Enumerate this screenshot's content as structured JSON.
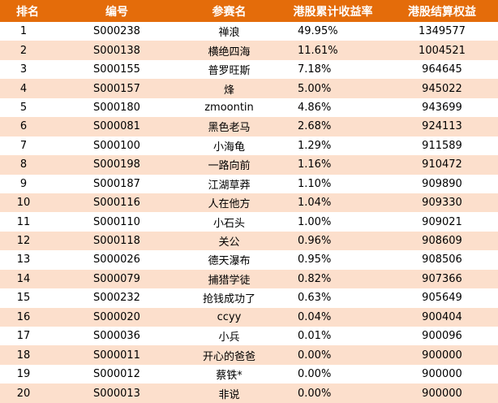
{
  "columns": {
    "rank": "排名",
    "id": "编号",
    "name": "参赛名",
    "return": "港股累计收益率",
    "equity": "港股结算权益"
  },
  "rows": [
    {
      "rank": "1",
      "id": "S000238",
      "name": "禅浪",
      "return": "49.95%",
      "equity": "1349577"
    },
    {
      "rank": "2",
      "id": "S000138",
      "name": "横绝四海",
      "return": "11.61%",
      "equity": "1004521"
    },
    {
      "rank": "3",
      "id": "S000155",
      "name": "普罗旺斯",
      "return": "7.18%",
      "equity": "964645"
    },
    {
      "rank": "4",
      "id": "S000157",
      "name": "烽",
      "return": "5.00%",
      "equity": "945022"
    },
    {
      "rank": "5",
      "id": "S000180",
      "name": "zmoontin",
      "return": "4.86%",
      "equity": "943699"
    },
    {
      "rank": "6",
      "id": "S000081",
      "name": "黑色老马",
      "return": "2.68%",
      "equity": "924113"
    },
    {
      "rank": "7",
      "id": "S000100",
      "name": "小海龟",
      "return": "1.29%",
      "equity": "911589"
    },
    {
      "rank": "8",
      "id": "S000198",
      "name": "一路向前",
      "return": "1.16%",
      "equity": "910472"
    },
    {
      "rank": "9",
      "id": "S000187",
      "name": "江湖草莽",
      "return": "1.10%",
      "equity": "909890"
    },
    {
      "rank": "10",
      "id": "S000116",
      "name": "人在他方",
      "return": "1.04%",
      "equity": "909330"
    },
    {
      "rank": "11",
      "id": "S000110",
      "name": "小石头",
      "return": "1.00%",
      "equity": "909021"
    },
    {
      "rank": "12",
      "id": "S000118",
      "name": "关公",
      "return": "0.96%",
      "equity": "908609"
    },
    {
      "rank": "13",
      "id": "S000026",
      "name": "德天瀑布",
      "return": "0.95%",
      "equity": "908506"
    },
    {
      "rank": "14",
      "id": "S000079",
      "name": "捕猎学徒",
      "return": "0.82%",
      "equity": "907366"
    },
    {
      "rank": "15",
      "id": "S000232",
      "name": "抢钱成功了",
      "return": "0.63%",
      "equity": "905649"
    },
    {
      "rank": "16",
      "id": "S000020",
      "name": "ccyy",
      "return": "0.04%",
      "equity": "900404"
    },
    {
      "rank": "17",
      "id": "S000036",
      "name": "小兵",
      "return": "0.01%",
      "equity": "900096"
    },
    {
      "rank": "18",
      "id": "S000011",
      "name": "开心的爸爸",
      "return": "0.00%",
      "equity": "900000"
    },
    {
      "rank": "19",
      "id": "S000012",
      "name": "蔡铁*",
      "return": "0.00%",
      "equity": "900000"
    },
    {
      "rank": "20",
      "id": "S000013",
      "name": "非说",
      "return": "0.00%",
      "equity": "900000"
    }
  ],
  "colors": {
    "header_bg": "#e46c0a",
    "header_text": "#ffffff",
    "stripe_bg": "#fcdfcc"
  }
}
